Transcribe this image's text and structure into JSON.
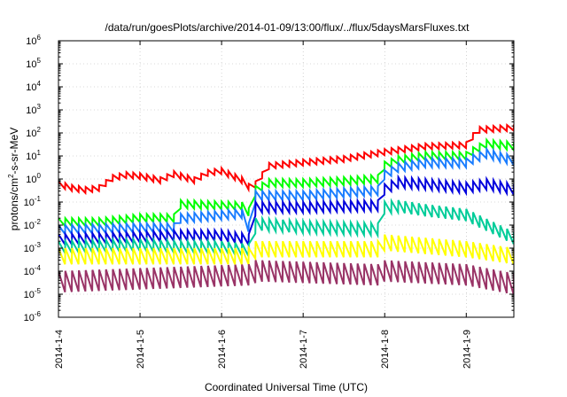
{
  "chart_data": {
    "type": "line",
    "title": "/data/run/goesPlots/archive/2014-01-09/13:00/flux/../flux/5daysMarsFluxes.txt",
    "xlabel": "Coordinated Universal Time (UTC)",
    "ylabel": "protons/cm²-s-sr-MeV",
    "ylabel_parts": {
      "pre": "protons/cm",
      "sup": "2",
      "post": "-s-sr-MeV"
    },
    "yscale": "log",
    "ylim": [
      1e-06,
      1000000.0
    ],
    "y_ticks": [
      {
        "base": "10",
        "exp": "-6"
      },
      {
        "base": "10",
        "exp": "-5"
      },
      {
        "base": "10",
        "exp": "-4"
      },
      {
        "base": "10",
        "exp": "-3"
      },
      {
        "base": "10",
        "exp": "-2"
      },
      {
        "base": "10",
        "exp": "-1"
      },
      {
        "base": "10",
        "exp": "0"
      },
      {
        "base": "10",
        "exp": "1"
      },
      {
        "base": "10",
        "exp": "2"
      },
      {
        "base": "10",
        "exp": "3"
      },
      {
        "base": "10",
        "exp": "4"
      },
      {
        "base": "10",
        "exp": "5"
      },
      {
        "base": "10",
        "exp": "6"
      }
    ],
    "x_ticks": [
      "2014-1-4",
      "2014-1-5",
      "2014-1-6",
      "2014-1-7",
      "2014-1-8",
      "2014-1-9"
    ],
    "xlim": [
      "2014-01-04T00:00",
      "2014-01-09T14:00"
    ],
    "grid": true,
    "sawtooth_period_hours": 2,
    "series": [
      {
        "color": "#ff0000",
        "sawtooth_low_factor": 0.55,
        "points": [
          [
            "2014-01-04T00:00",
            0.8
          ],
          [
            "2014-01-04T04:00",
            0.55
          ],
          [
            "2014-01-04T08:00",
            0.45
          ],
          [
            "2014-01-04T12:00",
            0.55
          ],
          [
            "2014-01-04T16:00",
            1.5
          ],
          [
            "2014-01-04T20:00",
            2.0
          ],
          [
            "2014-01-05T00:00",
            1.8
          ],
          [
            "2014-01-05T06:00",
            1.2
          ],
          [
            "2014-01-05T10:00",
            2.2
          ],
          [
            "2014-01-05T16:00",
            1.2
          ],
          [
            "2014-01-05T20:00",
            2.5
          ],
          [
            "2014-01-06T00:00",
            3.0
          ],
          [
            "2014-01-06T06:00",
            1.2
          ],
          [
            "2014-01-06T09:00",
            0.45
          ],
          [
            "2014-01-06T10:00",
            0.8
          ],
          [
            "2014-01-06T14:00",
            5.0
          ],
          [
            "2014-01-07T00:00",
            7.0
          ],
          [
            "2014-01-07T12:00",
            10.0
          ],
          [
            "2014-01-08T00:00",
            20.0
          ],
          [
            "2014-01-08T12:00",
            35.0
          ],
          [
            "2014-01-09T00:00",
            40.0
          ],
          [
            "2014-01-09T01:00",
            55.0
          ],
          [
            "2014-01-09T03:00",
            180.0
          ],
          [
            "2014-01-09T14:00",
            230.0
          ]
        ]
      },
      {
        "color": "#00ff00",
        "sawtooth_low_factor": 0.45,
        "points": [
          [
            "2014-01-04T00:00",
            0.02
          ],
          [
            "2014-01-04T12:00",
            0.02
          ],
          [
            "2014-01-05T00:00",
            0.03
          ],
          [
            "2014-01-05T10:00",
            0.03
          ],
          [
            "2014-01-05T11:00",
            0.07
          ],
          [
            "2014-01-05T12:00",
            0.12
          ],
          [
            "2014-01-06T06:00",
            0.1
          ],
          [
            "2014-01-06T09:00",
            0.04
          ],
          [
            "2014-01-06T10:00",
            0.5
          ],
          [
            "2014-01-06T14:00",
            1.0
          ],
          [
            "2014-01-07T00:00",
            1.0
          ],
          [
            "2014-01-07T12:00",
            1.2
          ],
          [
            "2014-01-07T22:00",
            1.5
          ],
          [
            "2014-01-07T23:00",
            5.0
          ],
          [
            "2014-01-08T04:00",
            10.0
          ],
          [
            "2014-01-08T12:00",
            15.0
          ],
          [
            "2014-01-09T00:00",
            15.0
          ],
          [
            "2014-01-09T01:00",
            20.0
          ],
          [
            "2014-01-09T06:00",
            50.0
          ],
          [
            "2014-01-09T14:00",
            40.0
          ]
        ]
      },
      {
        "color": "#1a7dff",
        "sawtooth_low_factor": 0.4,
        "points": [
          [
            "2014-01-04T00:00",
            0.01
          ],
          [
            "2014-01-05T00:00",
            0.012
          ],
          [
            "2014-01-05T10:00",
            0.012
          ],
          [
            "2014-01-05T11:00",
            0.03
          ],
          [
            "2014-01-06T06:00",
            0.05
          ],
          [
            "2014-01-06T09:00",
            0.006
          ],
          [
            "2014-01-06T10:00",
            0.3
          ],
          [
            "2014-01-07T00:00",
            0.3
          ],
          [
            "2014-01-07T12:00",
            0.4
          ],
          [
            "2014-01-07T22:00",
            0.5
          ],
          [
            "2014-01-07T23:00",
            2.0
          ],
          [
            "2014-01-08T04:00",
            5.0
          ],
          [
            "2014-01-08T12:00",
            8.0
          ],
          [
            "2014-01-09T00:00",
            8.0
          ],
          [
            "2014-01-09T01:00",
            10.0
          ],
          [
            "2014-01-09T06:00",
            20.0
          ],
          [
            "2014-01-09T14:00",
            10.0
          ]
        ]
      },
      {
        "color": "#0000dd",
        "sawtooth_low_factor": 0.35,
        "points": [
          [
            "2014-01-04T00:00",
            0.004
          ],
          [
            "2014-01-05T00:00",
            0.005
          ],
          [
            "2014-01-05T12:00",
            0.006
          ],
          [
            "2014-01-06T00:00",
            0.006
          ],
          [
            "2014-01-06T08:00",
            0.004
          ],
          [
            "2014-01-06T09:00",
            0.0015
          ],
          [
            "2014-01-06T10:00",
            0.1
          ],
          [
            "2014-01-07T00:00",
            0.1
          ],
          [
            "2014-01-07T22:00",
            0.12
          ],
          [
            "2014-01-07T23:00",
            0.5
          ],
          [
            "2014-01-08T04:00",
            1.2
          ],
          [
            "2014-01-08T12:00",
            1.0
          ],
          [
            "2014-01-09T00:00",
            0.7
          ],
          [
            "2014-01-09T06:00",
            1.0
          ],
          [
            "2014-01-09T14:00",
            0.6
          ]
        ]
      },
      {
        "color": "#00cc99",
        "sawtooth_low_factor": 0.3,
        "points": [
          [
            "2014-01-04T00:00",
            0.002
          ],
          [
            "2014-01-05T00:00",
            0.0025
          ],
          [
            "2014-01-05T12:00",
            0.002
          ],
          [
            "2014-01-06T00:00",
            0.002
          ],
          [
            "2014-01-06T08:00",
            0.0015
          ],
          [
            "2014-01-06T09:00",
            0.0003
          ],
          [
            "2014-01-06T10:00",
            0.02
          ],
          [
            "2014-01-07T00:00",
            0.015
          ],
          [
            "2014-01-07T22:00",
            0.012
          ],
          [
            "2014-01-07T23:00",
            0.1
          ],
          [
            "2014-01-08T04:00",
            0.12
          ],
          [
            "2014-01-08T12:00",
            0.08
          ],
          [
            "2014-01-09T00:00",
            0.05
          ],
          [
            "2014-01-09T14:00",
            0.005
          ]
        ]
      },
      {
        "color": "#ffff00",
        "sawtooth_low_factor": 0.2,
        "points": [
          [
            "2014-01-04T00:00",
            0.001
          ],
          [
            "2014-01-06T08:00",
            0.001
          ],
          [
            "2014-01-06T09:00",
            0.0004
          ],
          [
            "2014-01-06T10:00",
            0.002
          ],
          [
            "2014-01-07T22:00",
            0.002
          ],
          [
            "2014-01-07T23:00",
            0.004
          ],
          [
            "2014-01-09T00:00",
            0.002
          ],
          [
            "2014-01-09T14:00",
            0.001
          ]
        ]
      },
      {
        "color": "#993366",
        "sawtooth_low_factor": 0.12,
        "points": [
          [
            "2014-01-04T00:00",
            0.0001
          ],
          [
            "2014-01-06T08:00",
            0.0002
          ],
          [
            "2014-01-06T09:00",
            4e-05
          ],
          [
            "2014-01-06T10:00",
            0.0003
          ],
          [
            "2014-01-07T22:00",
            0.0002
          ],
          [
            "2014-01-07T23:00",
            0.0003
          ],
          [
            "2014-01-09T00:00",
            0.0002
          ],
          [
            "2014-01-09T14:00",
            8e-05
          ]
        ]
      }
    ]
  }
}
